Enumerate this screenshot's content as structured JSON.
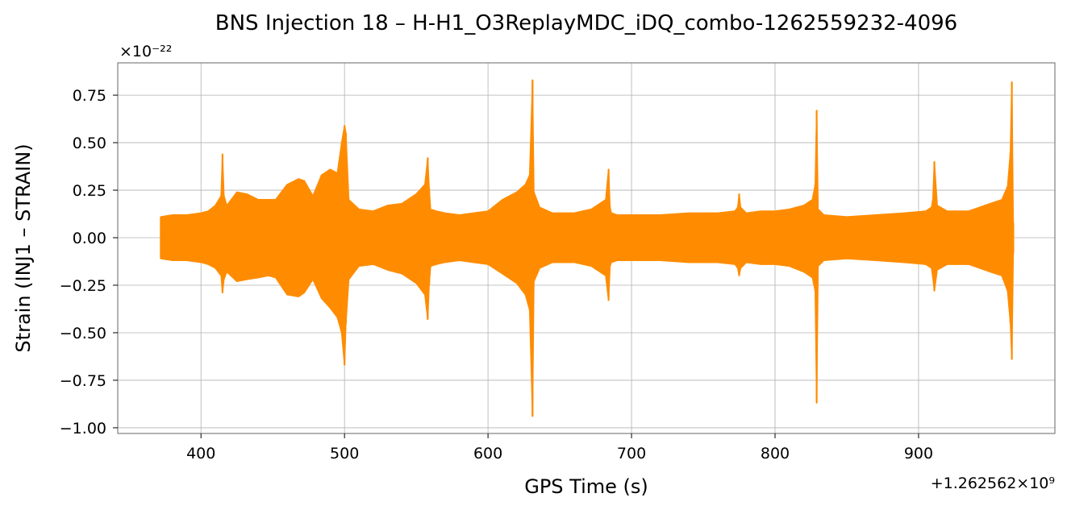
{
  "chart_data": {
    "type": "line",
    "title": "BNS Injection 18 – H-H1_O3ReplayMDC_iDQ_combo-1262559232-4096",
    "xlabel": "GPS Time (s)",
    "ylabel": "Strain (INJ1 – STRAIN)",
    "y_scale_text": "×10⁻²²",
    "x_offset_text": "+1.262562×10⁹",
    "xlim": [
      342,
      995
    ],
    "ylim": [
      -1.03,
      0.92
    ],
    "x_ticks": [
      400,
      500,
      600,
      700,
      800,
      900
    ],
    "x_tick_labels": [
      "400",
      "500",
      "600",
      "700",
      "800",
      "900"
    ],
    "y_ticks": [
      0.75,
      0.5,
      0.25,
      0.0,
      -0.25,
      -0.5,
      -0.75,
      -1.0
    ],
    "y_tick_labels": [
      "0.75",
      "0.50",
      "0.25",
      "0.00",
      "−0.25",
      "−0.50",
      "−0.75",
      "−1.00"
    ],
    "grid": true,
    "series": [
      {
        "color": "#ff8c00",
        "x": [
          372,
          380,
          390,
          400,
          405,
          410,
          414,
          415,
          416,
          418,
          425,
          432,
          440,
          447,
          452,
          460,
          468,
          472,
          478,
          484,
          490,
          495,
          498,
          500,
          501,
          503,
          510,
          520,
          530,
          540,
          550,
          556,
          558,
          559,
          560,
          564,
          570,
          580,
          590,
          600,
          610,
          620,
          626,
          629,
          631,
          632,
          636,
          645,
          660,
          672,
          682,
          684,
          685,
          686,
          690,
          700,
          720,
          740,
          760,
          772,
          774,
          775,
          776,
          780,
          790,
          800,
          810,
          820,
          826,
          828,
          829,
          830,
          834,
          850,
          870,
          890,
          905,
          909,
          910,
          911,
          913,
          920,
          935,
          950,
          958,
          962,
          964,
          965,
          966
        ],
        "upper": [
          0.11,
          0.12,
          0.12,
          0.13,
          0.14,
          0.17,
          0.22,
          0.44,
          0.22,
          0.17,
          0.24,
          0.23,
          0.2,
          0.2,
          0.2,
          0.28,
          0.31,
          0.3,
          0.22,
          0.33,
          0.36,
          0.34,
          0.5,
          0.59,
          0.55,
          0.2,
          0.15,
          0.14,
          0.17,
          0.18,
          0.23,
          0.28,
          0.42,
          0.26,
          0.15,
          0.14,
          0.13,
          0.12,
          0.13,
          0.14,
          0.2,
          0.24,
          0.28,
          0.33,
          0.83,
          0.24,
          0.16,
          0.13,
          0.13,
          0.15,
          0.2,
          0.36,
          0.16,
          0.13,
          0.12,
          0.12,
          0.12,
          0.13,
          0.13,
          0.14,
          0.16,
          0.23,
          0.16,
          0.13,
          0.14,
          0.14,
          0.15,
          0.17,
          0.2,
          0.28,
          0.67,
          0.15,
          0.12,
          0.11,
          0.12,
          0.13,
          0.14,
          0.16,
          0.2,
          0.4,
          0.17,
          0.14,
          0.14,
          0.18,
          0.2,
          0.27,
          0.45,
          0.82,
          0.08
        ],
        "lower": [
          -0.11,
          -0.12,
          -0.12,
          -0.13,
          -0.14,
          -0.16,
          -0.2,
          -0.29,
          -0.22,
          -0.18,
          -0.23,
          -0.22,
          -0.21,
          -0.2,
          -0.21,
          -0.3,
          -0.31,
          -0.29,
          -0.22,
          -0.32,
          -0.37,
          -0.42,
          -0.5,
          -0.67,
          -0.45,
          -0.22,
          -0.15,
          -0.14,
          -0.17,
          -0.19,
          -0.24,
          -0.3,
          -0.43,
          -0.25,
          -0.15,
          -0.14,
          -0.13,
          -0.12,
          -0.13,
          -0.14,
          -0.19,
          -0.24,
          -0.3,
          -0.38,
          -0.94,
          -0.23,
          -0.16,
          -0.13,
          -0.13,
          -0.15,
          -0.2,
          -0.33,
          -0.15,
          -0.13,
          -0.12,
          -0.12,
          -0.12,
          -0.13,
          -0.13,
          -0.14,
          -0.16,
          -0.2,
          -0.16,
          -0.13,
          -0.14,
          -0.14,
          -0.15,
          -0.18,
          -0.21,
          -0.28,
          -0.87,
          -0.15,
          -0.12,
          -0.11,
          -0.12,
          -0.13,
          -0.14,
          -0.16,
          -0.21,
          -0.28,
          -0.17,
          -0.14,
          -0.14,
          -0.18,
          -0.2,
          -0.28,
          -0.45,
          -0.64,
          -0.08
        ]
      }
    ]
  }
}
